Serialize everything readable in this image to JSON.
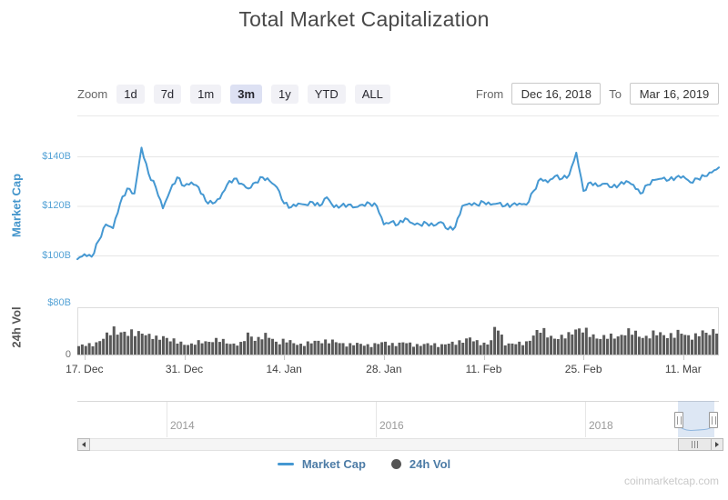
{
  "title": "Total Market Capitalization",
  "watermark": "coinmarketcap.com",
  "controls": {
    "zoom_label": "Zoom",
    "zoom_buttons": [
      "1d",
      "7d",
      "1m",
      "3m",
      "1y",
      "YTD",
      "ALL"
    ],
    "selected_zoom": "3m",
    "from_label": "From",
    "from_value": "Dec 16, 2018",
    "to_label": "To",
    "to_value": "Mar 16, 2019"
  },
  "legend": {
    "items": [
      {
        "label": "Market Cap",
        "symbol": "line",
        "color": "#4598d2"
      },
      {
        "label": "24h Vol",
        "symbol": "circle",
        "color": "#555555"
      }
    ]
  },
  "chart_data": {
    "type": "line",
    "title": "Total Market Capitalization",
    "x_interval": "daily",
    "x_range": [
      "Dec 16, 2018",
      "Mar 16, 2019"
    ],
    "x_tick_labels": [
      "17. Dec",
      "31. Dec",
      "14. Jan",
      "28. Jan",
      "11. Feb",
      "25. Feb",
      "11. Mar"
    ],
    "x_tick_days": [
      2,
      16,
      30,
      44,
      58,
      72,
      86
    ],
    "grid": true,
    "legend_position": "bottom",
    "series": [
      {
        "name": "Market Cap",
        "type": "line",
        "color": "#4598d2",
        "axis_label": "Market Cap",
        "unit": "USD billions",
        "y_ticks": [
          {
            "label": "$140B",
            "value": 140
          },
          {
            "label": "$120B",
            "value": 120
          },
          {
            "label": "$100B",
            "value": 100
          }
        ],
        "ylim": [
          96,
          156
        ],
        "values": [
          98.5,
          100.5,
          99.5,
          106,
          112.5,
          111,
          121,
          127,
          125,
          143.5,
          133,
          127.5,
          119,
          126,
          131.5,
          128,
          129.5,
          127.5,
          122,
          121,
          123,
          128.5,
          131,
          129,
          127,
          129.5,
          131.5,
          130,
          127.5,
          121,
          119.5,
          121,
          120.5,
          121.5,
          120,
          123.5,
          119.5,
          120,
          120.5,
          119.5,
          120.5,
          121,
          120,
          112.5,
          113.5,
          112.5,
          115,
          113,
          112.5,
          113,
          112,
          113.5,
          110.5,
          111.5,
          120,
          121,
          120.5,
          121.5,
          120.5,
          121,
          120,
          120.5,
          121,
          120.5,
          126,
          131,
          129.5,
          132,
          131,
          132.5,
          141.5,
          126,
          129.5,
          128,
          129,
          127.5,
          128.5,
          130,
          128.5,
          125,
          128.5,
          130.5,
          131,
          130.5,
          131.5,
          132,
          129.5,
          131,
          132,
          133.5,
          135.5
        ]
      },
      {
        "name": "24h Vol",
        "type": "column",
        "color": "#595959",
        "axis_label": "24h Vol",
        "unit": "USD billions",
        "y_ticks": [
          {
            "label": "$80B",
            "value": 80
          },
          {
            "label": "0",
            "value": 0
          }
        ],
        "ylim": [
          0,
          80
        ],
        "values": [
          13,
          14,
          16,
          22,
          28,
          39,
          36,
          30,
          33,
          37,
          27,
          24,
          30,
          22,
          18,
          17,
          16,
          18,
          20,
          23,
          21,
          18,
          17,
          16,
          32,
          24,
          28,
          26,
          19,
          22,
          18,
          16,
          17,
          18,
          21,
          22,
          19,
          17,
          16,
          16,
          15,
          15,
          16,
          18,
          17,
          16,
          18,
          16,
          15,
          15,
          16,
          15,
          16,
          17,
          22,
          25,
          19,
          18,
          17,
          45,
          18,
          17,
          16,
          17,
          30,
          36,
          32,
          27,
          25,
          28,
          42,
          38,
          30,
          28,
          27,
          26,
          28,
          35,
          33,
          30,
          28,
          30,
          32,
          31,
          29,
          33,
          30,
          28,
          32,
          35,
          40
        ]
      }
    ],
    "navigator": {
      "year_labels": [
        "2014",
        "2016",
        "2018"
      ],
      "selection_range": [
        "Dec 16, 2018",
        "Mar 16, 2019"
      ]
    }
  }
}
